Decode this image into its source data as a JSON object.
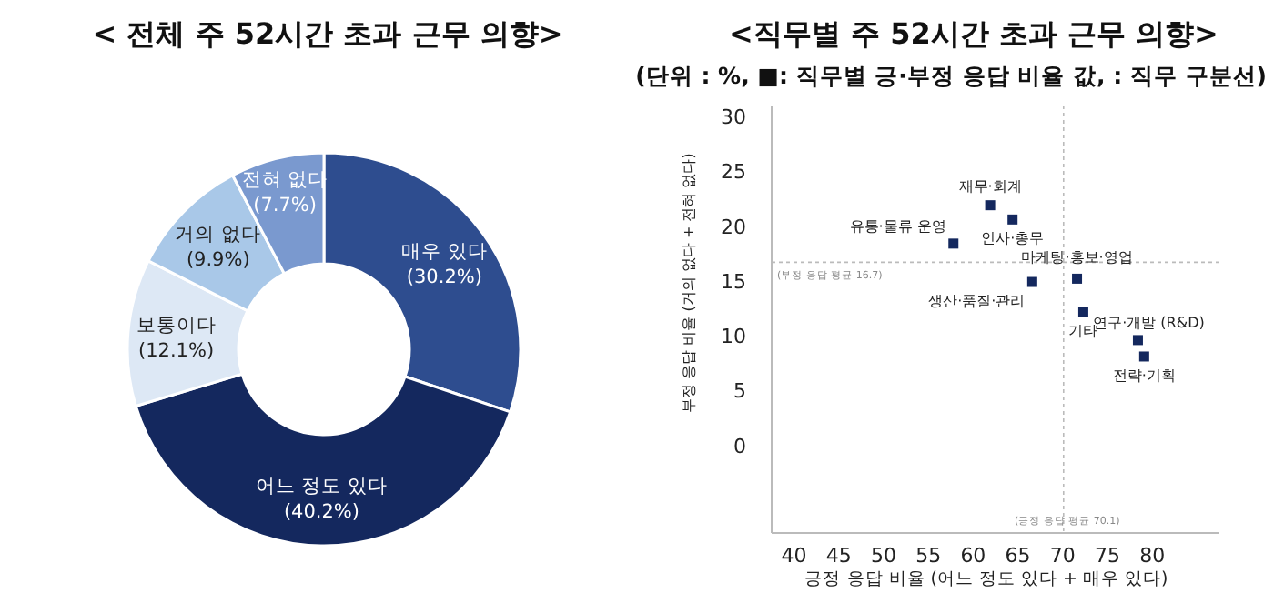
{
  "chart_data": [
    {
      "type": "donut",
      "title": "< 전체 주 52시간 초과 근무 의향>",
      "categories": [
        "매우 있다",
        "어느 정도 있다",
        "보통이다",
        "거의 없다",
        "전혀 없다"
      ],
      "values": [
        30.2,
        40.2,
        12.1,
        9.9,
        7.7
      ],
      "value_labels": [
        "(30.2%)",
        "(40.2%)",
        "(12.1%)",
        "(9.9%)",
        "(7.7%)"
      ],
      "colors": [
        "#2e4d8f",
        "#14285e",
        "#dde8f5",
        "#a9c8e8",
        "#7a99cf"
      ],
      "data_labels": true
    },
    {
      "type": "scatter",
      "title": "<직무별 주 52시간 초과 근무 의향>",
      "subtitle": "(단위 : %, ■: 직무별 긍·부정 응답 비율 값,  : 직무 구분선)",
      "xlabel": "긍정 응답 비율 (어느 정도 있다 + 매우 있다)",
      "ylabel": "부정 응답 비율 (거의 없다 + 전혀 없다)",
      "xlim": [
        37.5,
        87.5
      ],
      "ylim": [
        -8,
        31
      ],
      "xticks": [
        40,
        45,
        50,
        55,
        60,
        65,
        70,
        75,
        80
      ],
      "yticks": [
        0,
        5,
        10,
        15,
        20,
        25,
        30
      ],
      "marker": "square",
      "grid": false,
      "series": [
        {
          "name": "재무·회계",
          "color": "#14285e",
          "x": [
            61.9
          ],
          "values": [
            21.9
          ]
        },
        {
          "name": "인사·총무",
          "color": "#14285e",
          "x": [
            64.4
          ],
          "values": [
            20.6
          ]
        },
        {
          "name": "유통·물류 운영",
          "color": "#14285e",
          "x": [
            57.8
          ],
          "values": [
            18.4
          ]
        },
        {
          "name": "마케팅·홍보·영업",
          "color": "#14285e",
          "x": [
            71.6
          ],
          "values": [
            15.2
          ]
        },
        {
          "name": "생산·품질·관리",
          "color": "#14285e",
          "x": [
            66.6
          ],
          "values": [
            14.9
          ]
        },
        {
          "name": "기타",
          "color": "#14285e",
          "x": [
            72.3
          ],
          "values": [
            12.2
          ]
        },
        {
          "name": "연구·개발 (R&D)",
          "color": "#14285e",
          "x": [
            78.4
          ],
          "values": [
            9.6
          ]
        },
        {
          "name": "전략·기획",
          "color": "#14285e",
          "x": [
            79.1
          ],
          "values": [
            8.1
          ]
        }
      ],
      "ref_lines": [
        {
          "axis": "x",
          "value": 70.1,
          "label": "(긍정 응답 평균 70.1)",
          "color": "#bbbbbb",
          "line_style": "dotted"
        },
        {
          "axis": "y",
          "value": 16.7,
          "label": "(부정 응답 평균 16.7)",
          "color": "#bbbbbb",
          "line_style": "dotted"
        }
      ]
    }
  ]
}
